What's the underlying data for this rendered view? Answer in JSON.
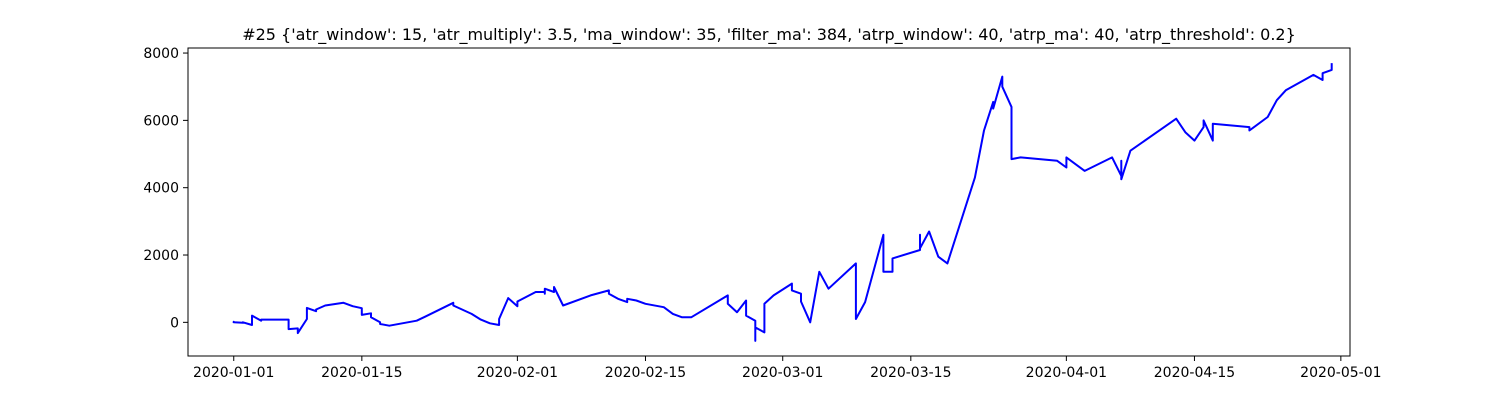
{
  "chart_data": {
    "type": "line",
    "title": "#25 {'atr_window': 15, 'atr_multiply': 3.5, 'ma_window': 35, 'filter_ma': 384, 'atrp_window': 40, 'atrp_ma': 40, 'atrp_threshold': 0.2}",
    "xlabel": "",
    "ylabel": "",
    "x_scale": "date",
    "xlim": [
      "2019-12-27",
      "2020-05-02"
    ],
    "ylim": [
      -1000,
      8150
    ],
    "grid": false,
    "legend": "none",
    "x_ticks": [
      "2020-01-01",
      "2020-01-15",
      "2020-02-01",
      "2020-02-15",
      "2020-03-01",
      "2020-03-15",
      "2020-04-01",
      "2020-04-15",
      "2020-05-01"
    ],
    "y_ticks": [
      0,
      2000,
      4000,
      6000,
      8000
    ],
    "series": [
      {
        "color": "#0000ff",
        "x": [
          "2020-01-01",
          "2020-01-01",
          "2020-01-01",
          "2020-01-02",
          "2020-01-02",
          "2020-01-03",
          "2020-01-03",
          "2020-01-03",
          "2020-01-04",
          "2020-01-04",
          "2020-01-07",
          "2020-01-07",
          "2020-01-08",
          "2020-01-08",
          "2020-01-09",
          "2020-01-09",
          "2020-01-10",
          "2020-01-10",
          "2020-01-11",
          "2020-01-11",
          "2020-01-13",
          "2020-01-14",
          "2020-01-15",
          "2020-01-15",
          "2020-01-16",
          "2020-01-16",
          "2020-01-17",
          "2020-01-17",
          "2020-01-18",
          "2020-01-21",
          "2020-01-22",
          "2020-01-25",
          "2020-01-25",
          "2020-01-27",
          "2020-01-28",
          "2020-01-29",
          "2020-01-30",
          "2020-01-30",
          "2020-01-31",
          "2020-02-01",
          "2020-02-01",
          "2020-02-03",
          "2020-02-04",
          "2020-02-04",
          "2020-02-04",
          "2020-02-05",
          "2020-02-05",
          "2020-02-06",
          "2020-02-09",
          "2020-02-11",
          "2020-02-11",
          "2020-02-12",
          "2020-02-13",
          "2020-02-13",
          "2020-02-14",
          "2020-02-15",
          "2020-02-17",
          "2020-02-18",
          "2020-02-19",
          "2020-02-19",
          "2020-02-20",
          "2020-02-24",
          "2020-02-24",
          "2020-02-25",
          "2020-02-26",
          "2020-02-26",
          "2020-02-27",
          "2020-02-27",
          "2020-02-27",
          "2020-02-28",
          "2020-02-28",
          "2020-02-29",
          "2020-03-02",
          "2020-03-02",
          "2020-03-03",
          "2020-03-03",
          "2020-03-04",
          "2020-03-05",
          "2020-03-06",
          "2020-03-06",
          "2020-03-09",
          "2020-03-09",
          "2020-03-09",
          "2020-03-10",
          "2020-03-12",
          "2020-03-12",
          "2020-03-13",
          "2020-03-13",
          "2020-03-16",
          "2020-03-16",
          "2020-03-16",
          "2020-03-17",
          "2020-03-18",
          "2020-03-19",
          "2020-03-19",
          "2020-03-22",
          "2020-03-23",
          "2020-03-23",
          "2020-03-24",
          "2020-03-24",
          "2020-03-25",
          "2020-03-25",
          "2020-03-26",
          "2020-03-26",
          "2020-03-26",
          "2020-03-27",
          "2020-03-27",
          "2020-03-31",
          "2020-04-01",
          "2020-04-01",
          "2020-04-03",
          "2020-04-06",
          "2020-04-07",
          "2020-04-07",
          "2020-04-07",
          "2020-04-08",
          "2020-04-13",
          "2020-04-14",
          "2020-04-15",
          "2020-04-16",
          "2020-04-16",
          "2020-04-17",
          "2020-04-17",
          "2020-04-21",
          "2020-04-21",
          "2020-04-23",
          "2020-04-24",
          "2020-04-25",
          "2020-04-28",
          "2020-04-29",
          "2020-04-29",
          "2020-04-30",
          "2020-04-30"
        ],
        "y": [
          -20,
          20,
          0,
          -10,
          0,
          -80,
          50,
          200,
          50,
          80,
          80,
          -200,
          -180,
          -320,
          100,
          430,
          330,
          380,
          500,
          500,
          580,
          480,
          420,
          220,
          270,
          150,
          0,
          -50,
          -100,
          50,
          180,
          580,
          500,
          250,
          80,
          -30,
          -80,
          100,
          720,
          480,
          620,
          900,
          900,
          850,
          1000,
          900,
          1050,
          500,
          800,
          950,
          850,
          700,
          600,
          700,
          650,
          550,
          450,
          250,
          150,
          150,
          150,
          800,
          550,
          300,
          650,
          200,
          50,
          -550,
          -150,
          -300,
          550,
          800,
          1150,
          950,
          850,
          620,
          0,
          1500,
          1000,
          1000,
          1750,
          800,
          100,
          600,
          2600,
          1500,
          1500,
          1900,
          2150,
          2600,
          2200,
          2700,
          1950,
          1750,
          1750,
          4300,
          5700,
          5700,
          6550,
          6350,
          7300,
          7000,
          6400,
          5900,
          4850,
          4900,
          4900,
          4800,
          4600,
          4900,
          4500,
          4900,
          4350,
          4800,
          4250,
          5100,
          6050,
          5650,
          5400,
          5800,
          6000,
          5400,
          5900,
          5800,
          5700,
          6100,
          6600,
          6900,
          7350,
          7200,
          7400,
          7500,
          7700
        ]
      }
    ]
  }
}
